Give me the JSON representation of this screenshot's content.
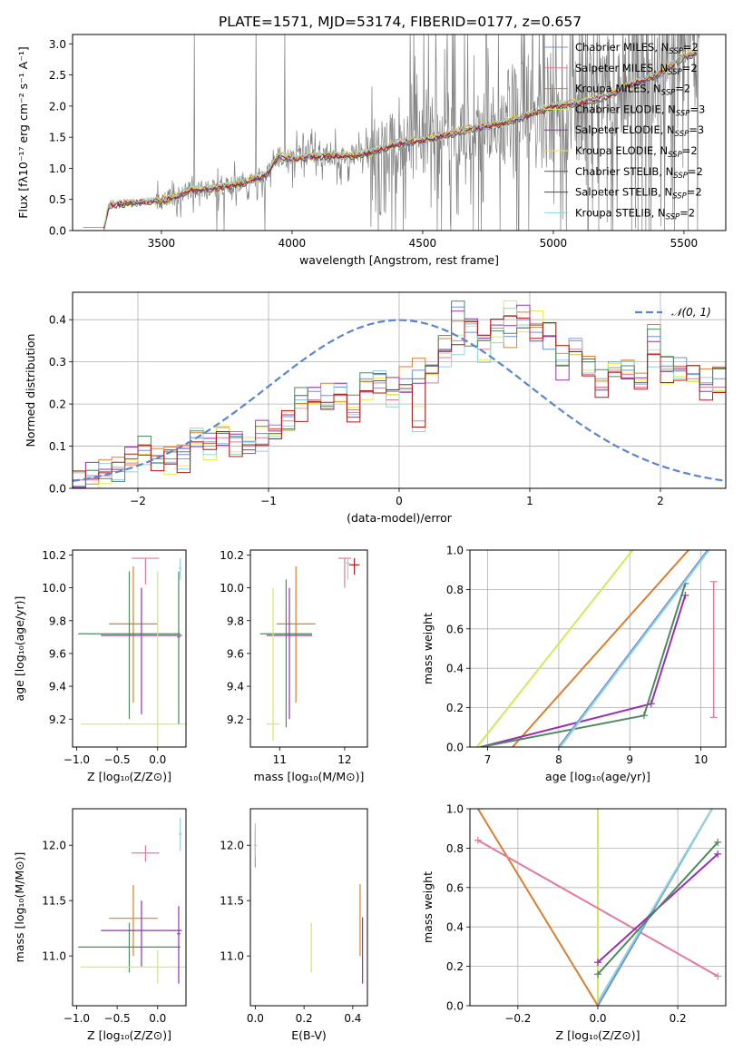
{
  "title": "PLATE=1571, MJD=53174, FIBERID=0177, z=0.657",
  "colors": {
    "Chabrier MILES": "#6f8fd6",
    "Salpeter MILES": "#e07b9a",
    "Kroupa MILES": "#d97f30",
    "Chabrier ELODIE": "#d4e85a",
    "Salpeter ELODIE": "#9a2fb5",
    "Kroupa ELODIE": "#e8ea4a",
    "Chabrier STELIB": "#555555",
    "Salpeter STELIB": "#b01818",
    "Kroupa STELIB": "#8fd4dc",
    "data": "#808080",
    "normal": "#5a86d1",
    "green": "#4f8a5e"
  },
  "chart_data": [
    {
      "id": "spectrum",
      "type": "line",
      "xlabel": "wavelength [Angstrom, rest frame]",
      "ylabel": "Flux [fλ10⁻¹⁷ erg cm⁻² s⁻¹ A⁻¹]",
      "xlim": [
        3160,
        5660
      ],
      "ylim": [
        0,
        3.15
      ],
      "xticks": [
        3500,
        4000,
        4500,
        5000,
        5500
      ],
      "yticks": [
        0.0,
        0.5,
        1.0,
        1.5,
        2.0,
        2.5,
        3.0
      ],
      "grid": false,
      "legend_position": "right",
      "legend": [
        "Chabrier MILES, N_SSP=2",
        "Salpeter MILES, N_SSP=2",
        "Kroupa MILES, N_SSP=2",
        "Chabrier ELODIE, N_SSP=3",
        "Salpeter ELODIE, N_SSP=3",
        "Kroupa ELODIE, N_SSP=2",
        "Chabrier STELIB, N_SSP=2",
        "Salpeter STELIB, N_SSP=2",
        "Kroupa STELIB, N_SSP=2"
      ],
      "model_continuum": {
        "x": [
          3280,
          3300,
          3400,
          3500,
          3560,
          3600,
          3700,
          3800,
          3900,
          3950,
          4000,
          4100,
          4200,
          4300,
          4400,
          4500,
          4600,
          4700,
          4800,
          4900,
          5000,
          5100,
          5200,
          5300,
          5400,
          5500,
          5550
        ],
        "y": [
          0.05,
          0.42,
          0.45,
          0.48,
          0.55,
          0.65,
          0.68,
          0.75,
          0.9,
          1.2,
          1.15,
          1.2,
          1.2,
          1.25,
          1.4,
          1.45,
          1.55,
          1.65,
          1.72,
          1.85,
          2.0,
          2.05,
          2.15,
          2.35,
          2.5,
          2.8,
          2.85
        ]
      }
    },
    {
      "id": "residuals",
      "type": "histogram",
      "xlabel": "(data-model)/error",
      "ylabel": "Normed distribution",
      "xlim": [
        -2.5,
        2.5
      ],
      "ylim": [
        0,
        0.465
      ],
      "xticks": [
        -2,
        -1,
        0,
        1,
        2
      ],
      "yticks": [
        0.0,
        0.1,
        0.2,
        0.3,
        0.4
      ],
      "grid": true,
      "legend": [
        "𝒩(0, 1)"
      ],
      "legend_position": "upper right",
      "bin_width": 0.1,
      "series": [
        {
          "name": "Chabrier MILES",
          "values": [
            0.02,
            0.03,
            0.04,
            0.05,
            0.07,
            0.09,
            0.07,
            0.07,
            0.08,
            0.12,
            0.11,
            0.13,
            0.12,
            0.11,
            0.13,
            0.15,
            0.17,
            0.21,
            0.23,
            0.22,
            0.24,
            0.2,
            0.26,
            0.27,
            0.23,
            0.26,
            0.28,
            0.27,
            0.33,
            0.43,
            0.37,
            0.35,
            0.38,
            0.36,
            0.4,
            0.37,
            0.33,
            0.29,
            0.35,
            0.3,
            0.26,
            0.3,
            0.28,
            0.25,
            0.36,
            0.29,
            0.31,
            0.27,
            0.25,
            0.26
          ]
        },
        {
          "name": "Salpeter MILES",
          "values": [
            0.02,
            0.02,
            0.03,
            0.04,
            0.06,
            0.08,
            0.06,
            0.06,
            0.07,
            0.11,
            0.1,
            0.12,
            0.11,
            0.1,
            0.12,
            0.14,
            0.16,
            0.19,
            0.21,
            0.19,
            0.22,
            0.18,
            0.23,
            0.25,
            0.21,
            0.23,
            0.16,
            0.25,
            0.31,
            0.35,
            0.39,
            0.33,
            0.38,
            0.41,
            0.38,
            0.39,
            0.36,
            0.32,
            0.33,
            0.27,
            0.24,
            0.28,
            0.27,
            0.24,
            0.32,
            0.28,
            0.29,
            0.26,
            0.24,
            0.24
          ]
        }
      ]
    },
    {
      "id": "age_vs_Z",
      "type": "errorbar",
      "xlabel": "Z [log₁₀(Z/Z⊙)]",
      "ylabel": "age  [log₁₀(age/yr)]",
      "xlim": [
        -1.05,
        0.35
      ],
      "ylim": [
        9.03,
        10.23
      ],
      "xticks": [
        -1.0,
        -0.5,
        0.0
      ],
      "yticks": [
        9.2,
        9.4,
        9.6,
        9.8,
        10.0,
        10.2
      ]
    },
    {
      "id": "age_vs_mass",
      "type": "errorbar",
      "xlabel": "mass [log₁₀(M/M⊙)]",
      "xlim": [
        10.55,
        12.35
      ],
      "ylim": [
        9.03,
        10.23
      ],
      "xticks": [
        11,
        12
      ],
      "yticks": [
        9.2,
        9.4,
        9.6,
        9.8,
        10.0,
        10.2
      ]
    },
    {
      "id": "weight_vs_age",
      "type": "line",
      "xlabel": "age  [log₁₀(age/yr)]",
      "ylabel": "mass weight",
      "xlim": [
        6.75,
        10.35
      ],
      "ylim": [
        0,
        1
      ],
      "xticks": [
        7,
        8,
        9,
        10
      ],
      "yticks": [
        0.0,
        0.2,
        0.4,
        0.6,
        0.8,
        1.0
      ],
      "grid": true
    },
    {
      "id": "mass_vs_Z",
      "type": "errorbar",
      "xlabel": "Z [log₁₀(Z/Z⊙)]",
      "ylabel": "mass [log₁₀(M/M⊙)]",
      "xlim": [
        -1.05,
        0.35
      ],
      "ylim": [
        10.55,
        12.33
      ],
      "xticks": [
        -1.0,
        -0.5,
        0.0
      ],
      "yticks": [
        11.0,
        11.5,
        12.0
      ]
    },
    {
      "id": "mass_vs_ebv",
      "type": "errorbar",
      "xlabel": "E(B-V)",
      "xlim": [
        -0.02,
        0.46
      ],
      "ylim": [
        10.55,
        12.33
      ],
      "xticks": [
        0.0,
        0.2,
        0.4
      ],
      "yticks": [
        11.0,
        11.5,
        12.0
      ]
    },
    {
      "id": "weight_vs_Z",
      "type": "line",
      "xlabel": "Z [log₁₀(Z/Z⊙)]",
      "ylabel": "mass weight",
      "xlim": [
        -0.32,
        0.32
      ],
      "ylim": [
        0,
        1
      ],
      "xticks": [
        -0.2,
        0.0,
        0.2
      ],
      "yticks": [
        0.0,
        0.2,
        0.4,
        0.6,
        0.8,
        1.0
      ],
      "grid": true
    }
  ]
}
